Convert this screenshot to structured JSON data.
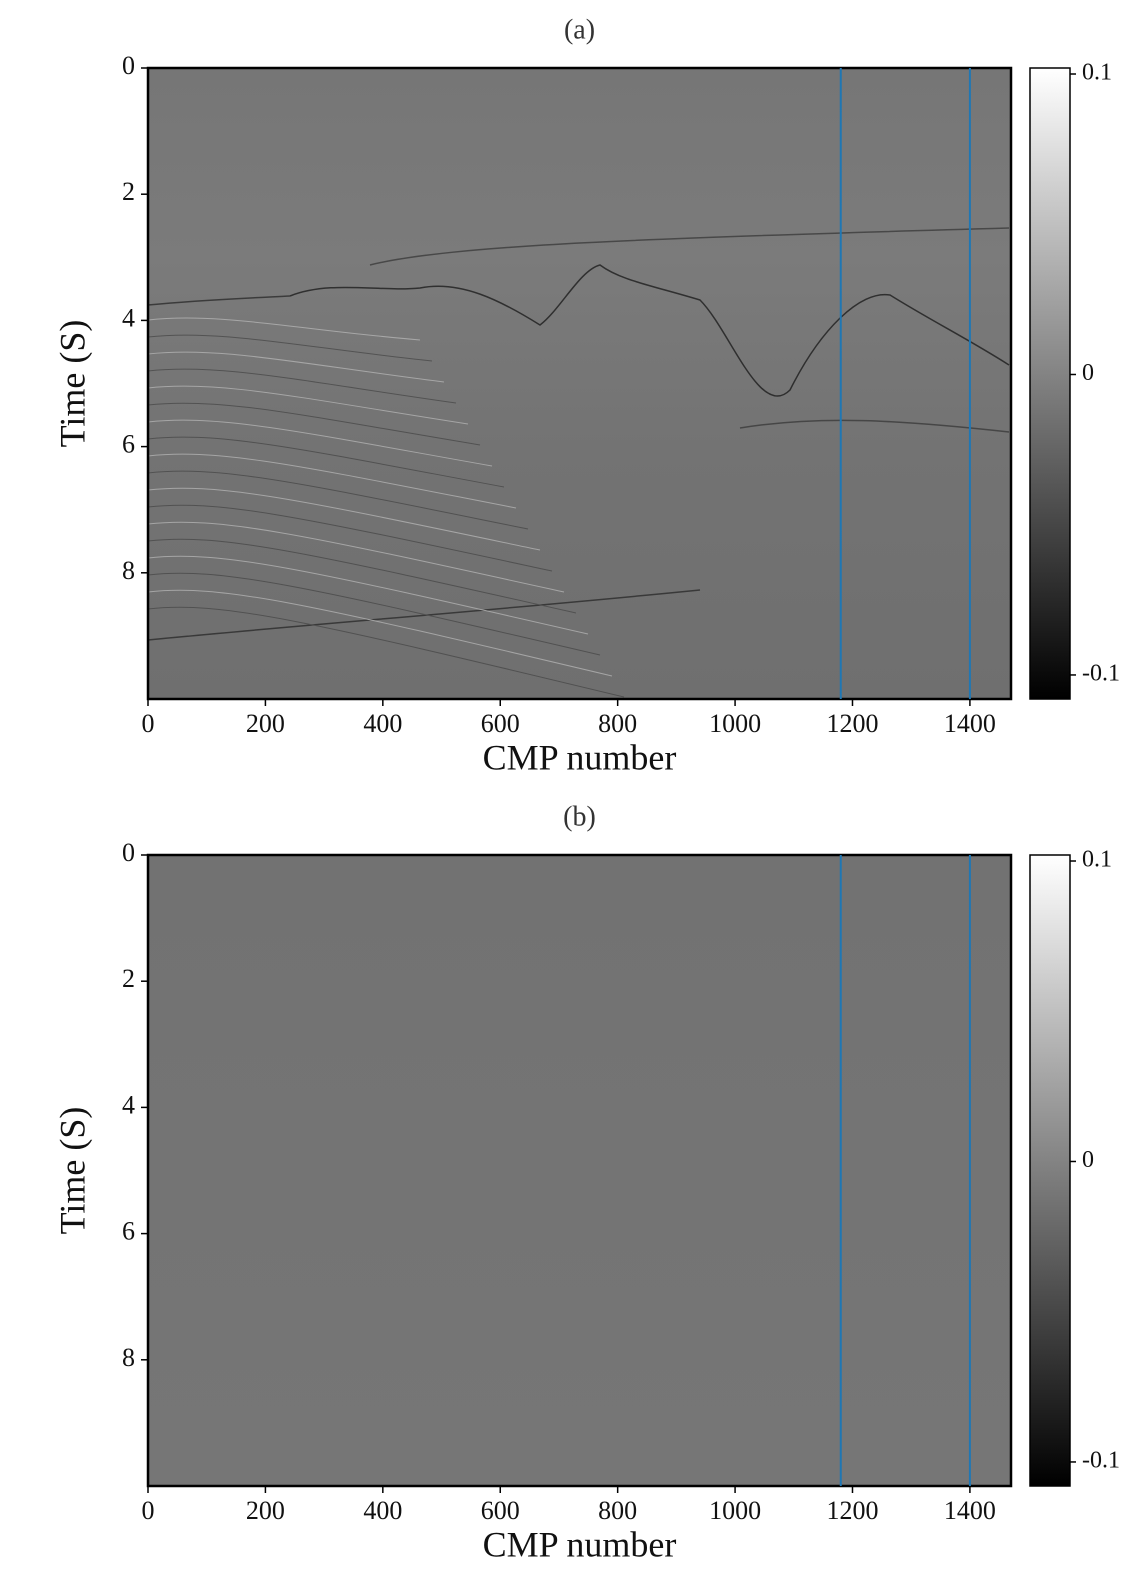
{
  "chart_data": [
    {
      "type": "image",
      "title": "(a)",
      "x_label": "CMP number",
      "y_label": "Time (S)",
      "xlim": [
        0,
        1470
      ],
      "xticks": [
        0,
        200,
        400,
        600,
        800,
        1000,
        1200,
        1400
      ],
      "ylim": [
        0,
        10
      ],
      "yticks": [
        0,
        2,
        4,
        6,
        8
      ],
      "y_inverted": true,
      "colormap": "gray",
      "vlines": [
        1180,
        1400
      ],
      "vline_color": "#1f77b4",
      "colorbar": {
        "lim": [
          -0.108,
          0.102
        ],
        "ticks": [
          0.1,
          0,
          -0.1
        ]
      }
    },
    {
      "type": "image",
      "title": "(b)",
      "x_label": "CMP number",
      "y_label": "Time (S)",
      "xlim": [
        0,
        1470
      ],
      "xticks": [
        0,
        200,
        400,
        600,
        800,
        1000,
        1200,
        1400
      ],
      "ylim": [
        0,
        10
      ],
      "yticks": [
        0,
        2,
        4,
        6,
        8
      ],
      "y_inverted": true,
      "colormap": "gray",
      "vlines": [
        1180,
        1400
      ],
      "vline_color": "#1f77b4",
      "colorbar": {
        "lim": [
          -0.108,
          0.102
        ],
        "ticks": [
          0.1,
          0,
          -0.1
        ]
      }
    }
  ]
}
